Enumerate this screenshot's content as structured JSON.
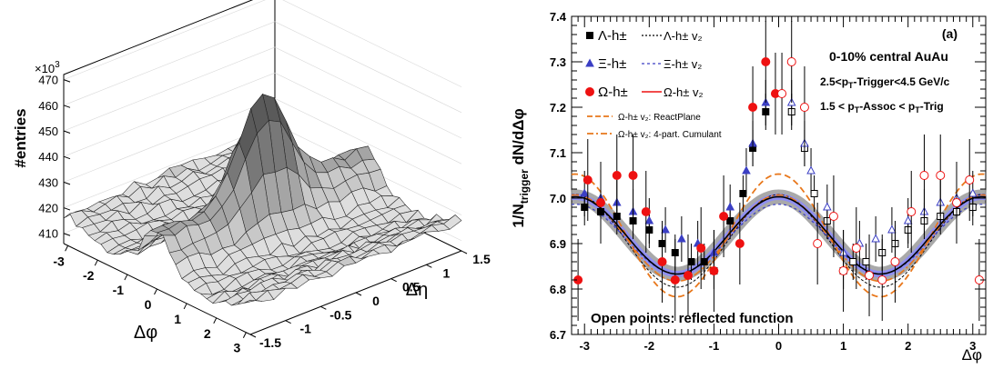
{
  "left_panel": {
    "zlabel": "#entries",
    "multiplier": "×10",
    "multiplier_exp": "3",
    "xlabel": "Δφ",
    "ylabel": "Δη",
    "z_ticks": [
      "410",
      "420",
      "430",
      "440",
      "450",
      "460",
      "470"
    ],
    "phi_ticks": [
      "-3",
      "-2",
      "-1",
      "0",
      "1",
      "2",
      "3"
    ],
    "eta_ticks": [
      "-1.5",
      "-1",
      "-0.5",
      "0",
      "0.5",
      "1",
      "1.5"
    ]
  },
  "right_panel": {
    "panel_tag": "(a)",
    "ylabel": "1/N_trigger dN/dΔφ",
    "xlabel": "Δφ",
    "system": "0-10% central AuAu",
    "trigger_cut": "2.5<p_T-Trigger<4.5 GeV/c",
    "assoc_cut": "1.5 < p_T-Assoc < p_T-Trig",
    "footer": "Open points: reflected function",
    "legend": [
      {
        "label": "Λ-h±",
        "v2": "Λ-h± v₂",
        "color": "#000000",
        "marker": "square"
      },
      {
        "label": "Ξ-h±",
        "v2": "Ξ-h± v₂",
        "color": "#3b3fc4",
        "marker": "triangle"
      },
      {
        "label": "Ω-h±",
        "v2": "Ω-h± v₂",
        "color": "#ee1111",
        "marker": "circle"
      }
    ],
    "legend_extra": [
      {
        "label": "Ω-h± v₂: ReactPlane",
        "color": "#e8771b"
      },
      {
        "label": "Ω-h± v₂: 4-part. Cumulant",
        "color": "#e8771b"
      }
    ]
  },
  "chart_data": [
    {
      "type": "surface",
      "title": "",
      "xlabel": "Δφ",
      "ylabel": "Δη",
      "zlabel": "#entries",
      "z_multiplier": "×10^3",
      "xlim": [
        -3.14,
        3.14
      ],
      "ylim": [
        -1.5,
        1.5
      ],
      "zlim": [
        406,
        472
      ],
      "surface_peak": {
        "dphi": 0,
        "deta": 0,
        "value": 463
      },
      "ridge_level": [
        424,
        428
      ],
      "background_level": [
        412,
        416
      ]
    },
    {
      "type": "scatter",
      "xlabel": "Δφ",
      "ylabel": "1/N_trigger dN/dΔφ",
      "xlim": [
        -3.2,
        3.2
      ],
      "ylim": [
        6.7,
        7.4
      ],
      "series": [
        {
          "name": "Λ-h±",
          "marker": "square",
          "color": "#000000",
          "points": [
            [
              -3.0,
              6.98
            ],
            [
              -2.75,
              6.97
            ],
            [
              -2.5,
              6.96
            ],
            [
              -2.25,
              6.95
            ],
            [
              -2.0,
              6.93
            ],
            [
              -1.8,
              6.9
            ],
            [
              -1.6,
              6.88
            ],
            [
              -1.35,
              6.86
            ],
            [
              -1.15,
              6.86
            ],
            [
              -1.0,
              6.84
            ],
            [
              -0.75,
              6.95
            ],
            [
              -0.55,
              7.01
            ],
            [
              -0.4,
              7.11
            ],
            [
              -0.2,
              7.19
            ]
          ],
          "reflected": [
            [
              0.2,
              7.19
            ],
            [
              0.4,
              7.11
            ],
            [
              0.55,
              7.01
            ],
            [
              0.75,
              6.95
            ],
            [
              1.0,
              6.84
            ],
            [
              1.15,
              6.86
            ],
            [
              1.35,
              6.86
            ],
            [
              1.6,
              6.88
            ],
            [
              1.8,
              6.9
            ],
            [
              2.0,
              6.93
            ],
            [
              2.25,
              6.95
            ],
            [
              2.5,
              6.96
            ],
            [
              2.75,
              6.97
            ],
            [
              3.0,
              6.98
            ]
          ]
        },
        {
          "name": "Ξ-h±",
          "marker": "triangle",
          "color": "#3b3fc4",
          "points": [
            [
              -3.0,
              7.01
            ],
            [
              -2.75,
              7.0
            ],
            [
              -2.5,
              6.99
            ],
            [
              -2.25,
              6.97
            ],
            [
              -2.0,
              6.95
            ],
            [
              -1.75,
              6.93
            ],
            [
              -1.5,
              6.91
            ],
            [
              -1.25,
              6.9
            ],
            [
              -1.0,
              6.88
            ],
            [
              -0.75,
              6.98
            ],
            [
              -0.5,
              7.06
            ],
            [
              -0.4,
              7.12
            ],
            [
              -0.2,
              7.21
            ]
          ],
          "reflected": [
            [
              0.2,
              7.21
            ],
            [
              0.4,
              7.12
            ],
            [
              0.5,
              7.06
            ],
            [
              0.75,
              6.98
            ],
            [
              1.0,
              6.88
            ],
            [
              1.25,
              6.9
            ],
            [
              1.5,
              6.91
            ],
            [
              1.75,
              6.93
            ],
            [
              2.0,
              6.95
            ],
            [
              2.25,
              6.97
            ],
            [
              2.5,
              6.99
            ],
            [
              2.75,
              7.0
            ],
            [
              3.0,
              7.01
            ]
          ]
        },
        {
          "name": "Ω-h±",
          "marker": "circle",
          "color": "#ee1111",
          "points": [
            [
              -3.1,
              6.82
            ],
            [
              -2.95,
              7.04
            ],
            [
              -2.75,
              6.99
            ],
            [
              -2.5,
              7.05
            ],
            [
              -2.25,
              7.05
            ],
            [
              -2.05,
              6.97
            ],
            [
              -1.8,
              6.86
            ],
            [
              -1.6,
              6.82
            ],
            [
              -1.4,
              6.83
            ],
            [
              -1.2,
              6.89
            ],
            [
              -1.0,
              6.84
            ],
            [
              -0.85,
              6.96
            ],
            [
              -0.6,
              6.9
            ],
            [
              -0.4,
              7.2
            ],
            [
              -0.2,
              7.3
            ],
            [
              -0.05,
              7.23
            ]
          ],
          "reflected": [
            [
              0.05,
              7.23
            ],
            [
              0.2,
              7.3
            ],
            [
              0.4,
              7.2
            ],
            [
              0.6,
              6.9
            ],
            [
              0.85,
              6.96
            ],
            [
              1.0,
              6.84
            ],
            [
              1.2,
              6.89
            ],
            [
              1.4,
              6.83
            ],
            [
              1.6,
              6.82
            ],
            [
              1.8,
              6.86
            ],
            [
              2.05,
              6.97
            ],
            [
              2.25,
              7.05
            ],
            [
              2.5,
              7.05
            ],
            [
              2.75,
              6.99
            ],
            [
              2.95,
              7.04
            ],
            [
              3.1,
              6.82
            ]
          ]
        }
      ],
      "fits": [
        {
          "name": "Ω-h± v₂",
          "style": "solid",
          "color": "#000000",
          "baseline": 6.918,
          "amplitude": 0.085
        },
        {
          "name": "Ω-h± v₂: ReactPlane",
          "style": "dashed",
          "color": "#e8771b",
          "baseline": 6.918,
          "amplitude": 0.135
        },
        {
          "name": "Ω-h± v₂: 4-part. Cumulant",
          "style": "dash-dot",
          "color": "#e8771b",
          "baseline": 6.918,
          "amplitude": 0.095
        }
      ]
    }
  ]
}
